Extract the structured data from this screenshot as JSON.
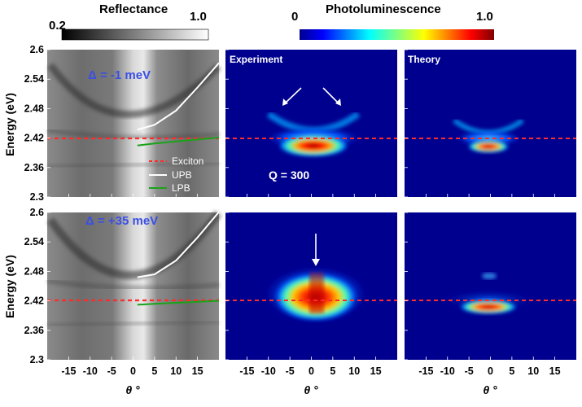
{
  "reflectance_colorbar": {
    "title": "Reflectance",
    "min_label": "0.2",
    "max_label": "1.0",
    "colormap": "gray"
  },
  "pl_colorbar": {
    "title": "Photoluminescence",
    "min_label": "0",
    "max_label": "1.0",
    "colormap": "jet"
  },
  "axes": {
    "ylabel": "Energy (eV)",
    "xlabel": "θ °",
    "y_ticks": [
      "2.6",
      "2.54",
      "2.48",
      "2.42",
      "2.36",
      "2.3"
    ],
    "x_ticks": [
      "-15",
      "-10",
      "-5",
      "0",
      "5",
      "10",
      "15"
    ]
  },
  "panels": {
    "experiment_title": "Experiment",
    "theory_title": "Theory",
    "row1_delta": "Δ = -1 meV",
    "row2_delta": "Δ = +35 meV",
    "q_label": "Q = 300"
  },
  "legend": {
    "exciton": "Exciton",
    "upb": "UPB",
    "lpb": "LPB"
  },
  "colors": {
    "exciton": "#ff2a2a",
    "upb": "#ffffff",
    "lpb": "#19a319",
    "delta_text": "#3a4fe6"
  },
  "chart_data": {
    "type": "heatmap",
    "x_range_deg": [
      -20,
      20
    ],
    "y_range_eV": [
      2.3,
      2.6
    ],
    "exciton_energy_eV": 2.42,
    "rows": [
      {
        "detuning_meV": -1,
        "upb": [
          [
            1,
            2.437
          ],
          [
            5,
            2.447
          ],
          [
            10,
            2.476
          ],
          [
            15,
            2.523
          ],
          [
            20,
            2.573
          ]
        ],
        "lpb": [
          [
            1,
            2.405
          ],
          [
            5,
            2.409
          ],
          [
            10,
            2.413
          ],
          [
            15,
            2.417
          ],
          [
            20,
            2.421
          ]
        ]
      },
      {
        "detuning_meV": 35,
        "upb": [
          [
            1,
            2.468
          ],
          [
            5,
            2.474
          ],
          [
            10,
            2.502
          ],
          [
            15,
            2.549
          ],
          [
            20,
            2.601
          ]
        ],
        "lpb": [
          [
            1,
            2.412
          ],
          [
            5,
            2.414
          ],
          [
            10,
            2.416
          ],
          [
            15,
            2.418
          ],
          [
            20,
            2.42
          ]
        ]
      }
    ]
  }
}
